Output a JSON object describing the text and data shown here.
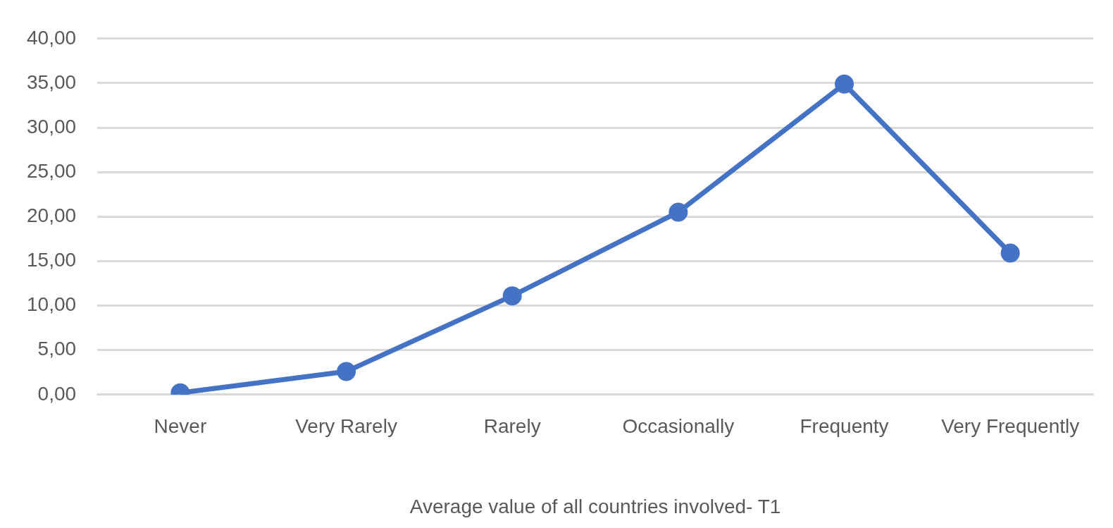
{
  "chart_data": {
    "type": "line",
    "xlabel": "Average value of all countries involved- T1",
    "categories": [
      "Never",
      "Very Rarely",
      "Rarely",
      "Occasionally",
      "Frequenty",
      "Very Frequently"
    ],
    "series": [
      {
        "color": "#4472c4",
        "values": [
          0.2,
          2.6,
          11.1,
          20.5,
          34.9,
          15.9
        ]
      }
    ],
    "ylim": [
      0,
      40
    ],
    "yticks": [
      {
        "value": 0,
        "label": "0,00"
      },
      {
        "value": 5,
        "label": "5,00"
      },
      {
        "value": 10,
        "label": "10,00"
      },
      {
        "value": 15,
        "label": "15,00"
      },
      {
        "value": 20,
        "label": "20,00"
      },
      {
        "value": 25,
        "label": "25,00"
      },
      {
        "value": 30,
        "label": "30,00"
      },
      {
        "value": 35,
        "label": "35,00"
      },
      {
        "value": 40,
        "label": "40,00"
      }
    ],
    "grid": "y",
    "legend": false,
    "marker": "circle",
    "line_style": "solid"
  }
}
